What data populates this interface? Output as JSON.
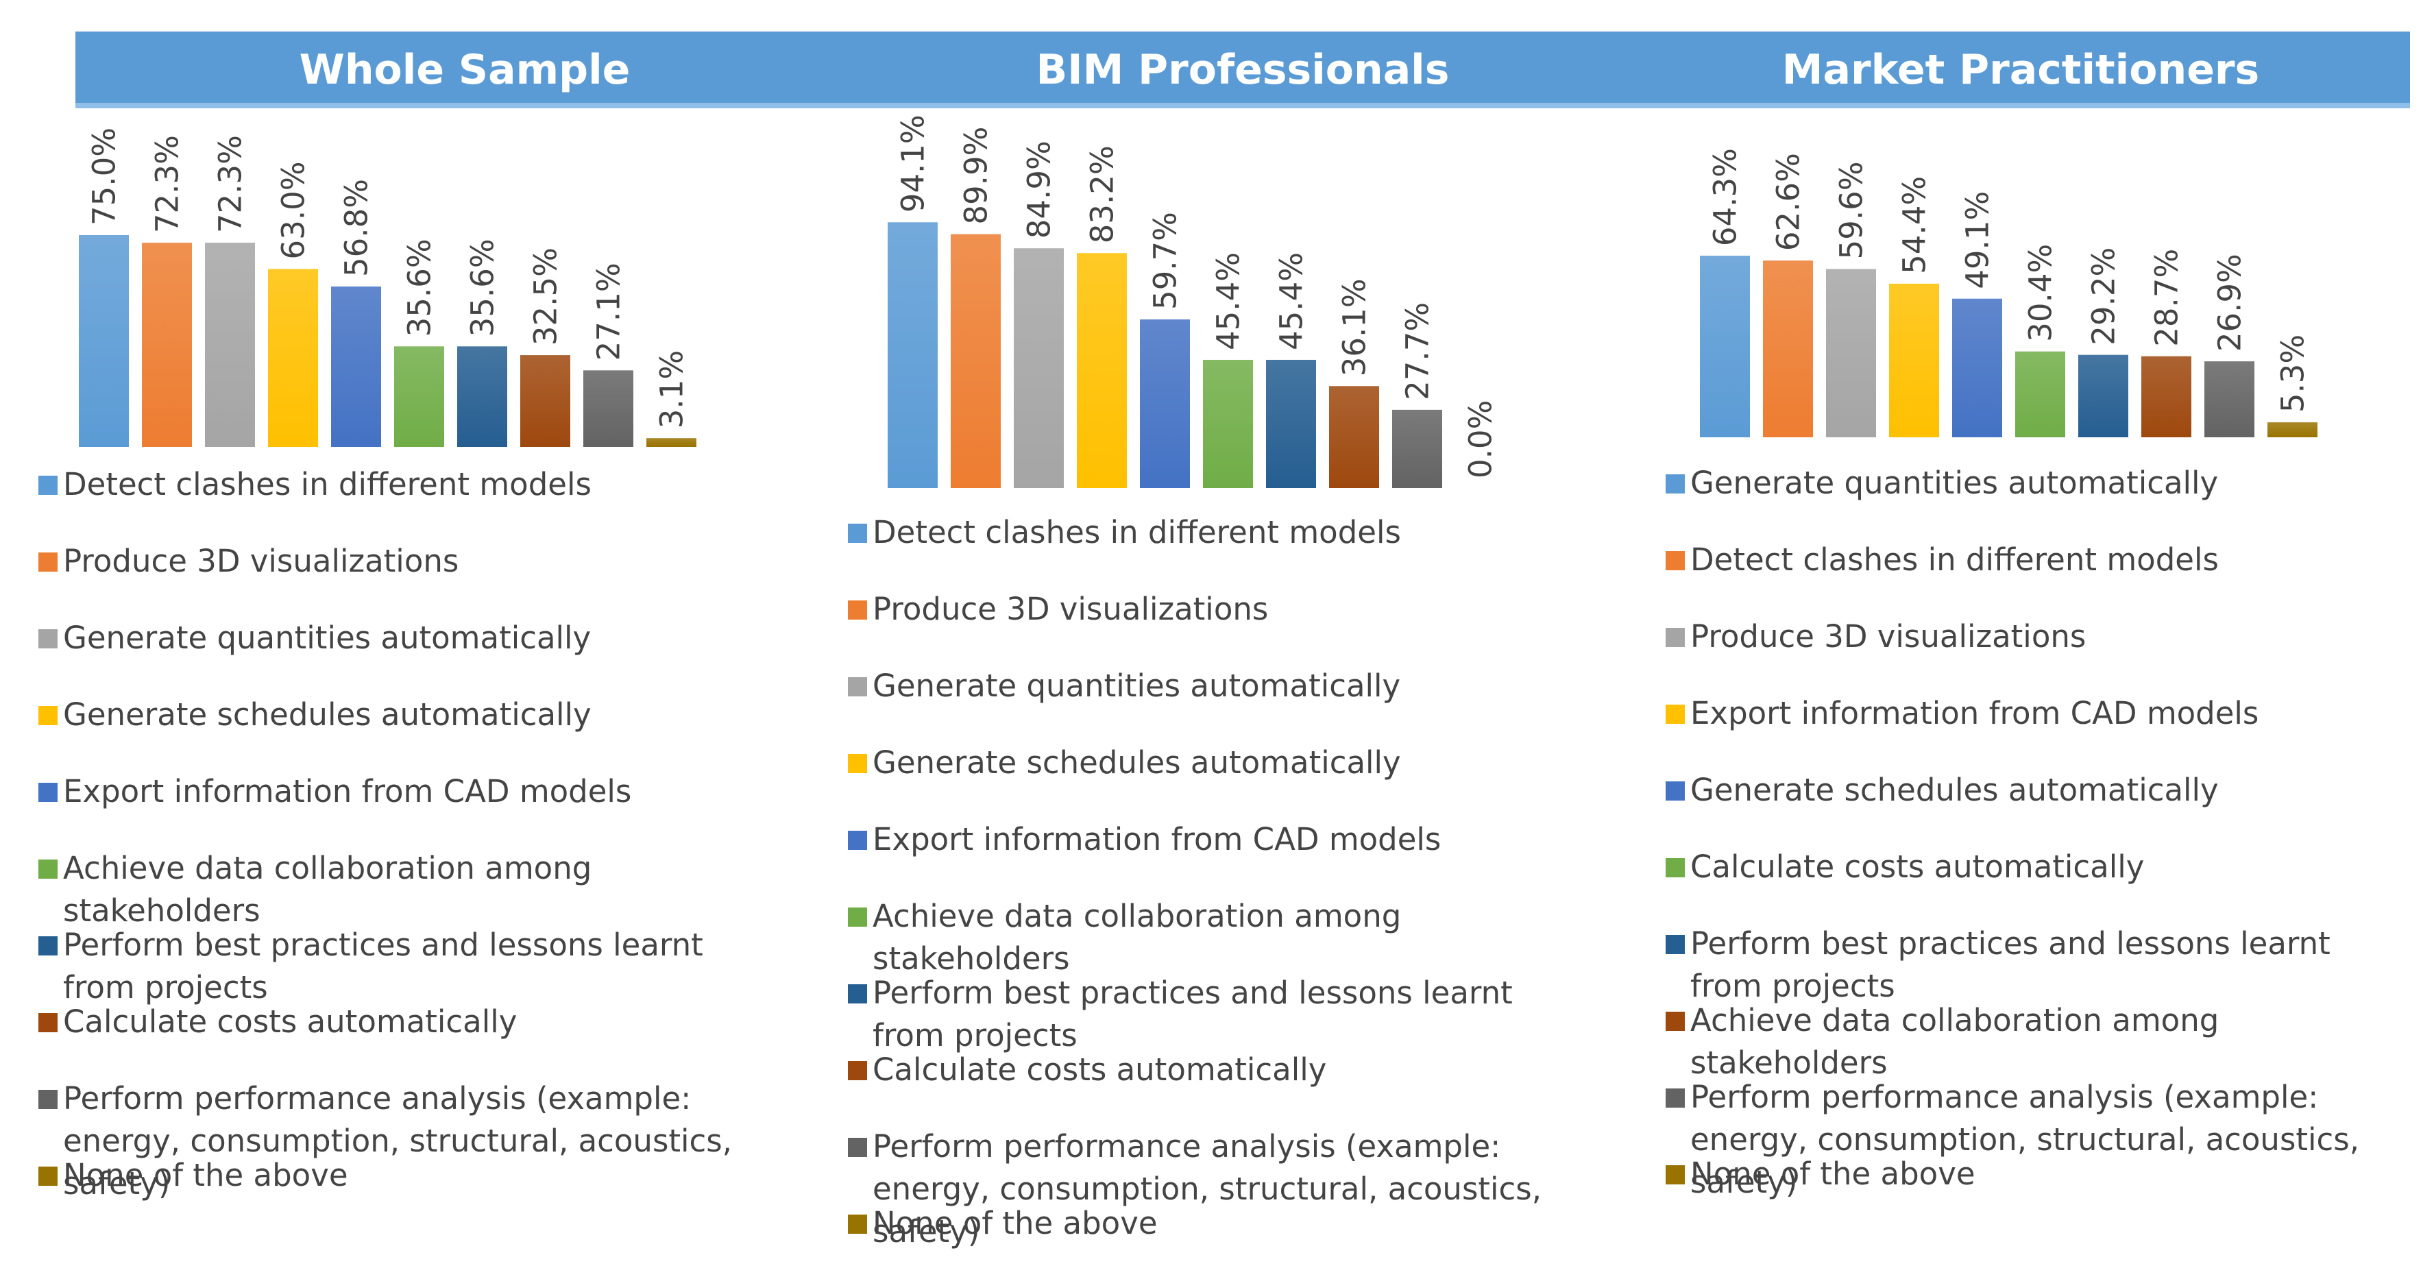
{
  "chart_data": [
    {
      "type": "bar",
      "title": "Whole Sample",
      "categories": [
        "Detect clashes in different models",
        "Produce 3D visualizations",
        "Generate quantities automatically",
        "Generate schedules automatically",
        "Export information from CAD models",
        "Achieve data collaboration among stakeholders",
        "Perform best practices and lessons learnt from projects",
        "Calculate costs automatically",
        "Perform performance analysis (example: energy, consumption, structural, acoustics, safety)",
        "None of the above"
      ],
      "values": [
        75.0,
        72.3,
        72.3,
        63.0,
        56.8,
        35.6,
        35.6,
        32.5,
        27.1,
        3.1
      ],
      "labels": [
        "75.0%",
        "72.3%",
        "72.3%",
        "63.0%",
        "56.8%",
        "35.6%",
        "35.6%",
        "32.5%",
        "27.1%",
        "3.1%"
      ],
      "colors": [
        "#5b9bd5",
        "#ed7d31",
        "#a5a5a5",
        "#ffc000",
        "#4472c4",
        "#70ad47",
        "#255e91",
        "#9e480e",
        "#636363",
        "#997300"
      ],
      "ylim": [
        0,
        100
      ],
      "legend": "bottom"
    },
    {
      "type": "bar",
      "title": "BIM Professionals",
      "categories": [
        "Detect clashes in different models",
        "Produce 3D visualizations",
        "Generate quantities automatically",
        "Generate schedules automatically",
        "Export information from CAD models",
        "Achieve data collaboration among stakeholders",
        "Perform best practices and lessons learnt from projects",
        "Calculate costs automatically",
        "Perform performance analysis (example: energy, consumption, structural, acoustics, safety)",
        "None of the above"
      ],
      "values": [
        94.1,
        89.9,
        84.9,
        83.2,
        59.7,
        45.4,
        45.4,
        36.1,
        27.7,
        0.0
      ],
      "labels": [
        "94.1%",
        "89.9%",
        "84.9%",
        "83.2%",
        "59.7%",
        "45.4%",
        "45.4%",
        "36.1%",
        "27.7%",
        "0.0%"
      ],
      "colors": [
        "#5b9bd5",
        "#ed7d31",
        "#a5a5a5",
        "#ffc000",
        "#4472c4",
        "#70ad47",
        "#255e91",
        "#9e480e",
        "#636363",
        "#997300"
      ],
      "ylim": [
        0,
        100
      ],
      "legend": "bottom"
    },
    {
      "type": "bar",
      "title": "Market Practitioners",
      "categories": [
        "Generate quantities automatically",
        "Detect clashes in different models",
        "Produce 3D visualizations",
        "Export information from CAD models",
        "Generate schedules automatically",
        "Calculate costs automatically",
        "Perform best practices and lessons learnt from projects",
        "Achieve data collaboration among stakeholders",
        "Perform performance analysis (example: energy, consumption, structural, acoustics, safety)",
        "None of the above"
      ],
      "values": [
        64.3,
        62.6,
        59.6,
        54.4,
        49.1,
        30.4,
        29.2,
        28.7,
        26.9,
        5.3
      ],
      "labels": [
        "64.3%",
        "62.6%",
        "59.6%",
        "54.4%",
        "49.1%",
        "30.4%",
        "29.2%",
        "28.7%",
        "26.9%",
        "5.3%"
      ],
      "colors": [
        "#5b9bd5",
        "#ed7d31",
        "#a5a5a5",
        "#ffc000",
        "#4472c4",
        "#70ad47",
        "#255e91",
        "#9e480e",
        "#636363",
        "#997300"
      ],
      "ylim": [
        0,
        100
      ],
      "legend": "bottom"
    }
  ]
}
